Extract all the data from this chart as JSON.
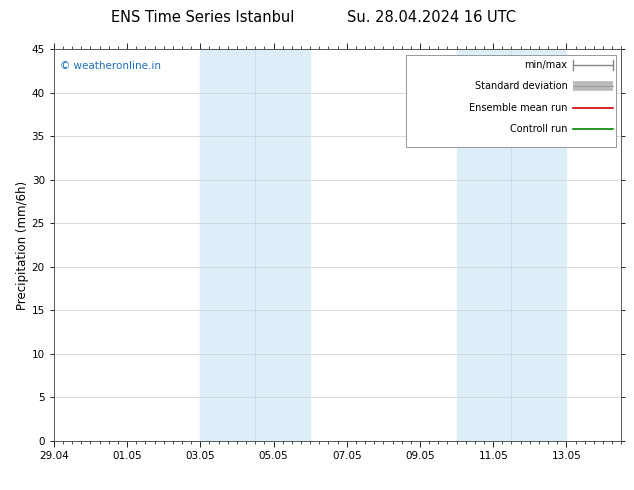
{
  "title_left": "ENS Time Series Istanbul",
  "title_right": "Su. 28.04.2024 16 UTC",
  "ylabel": "Precipitation (mm/6h)",
  "ylim": [
    0,
    45
  ],
  "yticks": [
    0,
    5,
    10,
    15,
    20,
    25,
    30,
    35,
    40,
    45
  ],
  "xlim_days": [
    0,
    15.5
  ],
  "xtick_labels": [
    "29.04",
    "01.05",
    "03.05",
    "05.05",
    "07.05",
    "09.05",
    "11.05",
    "13.05"
  ],
  "xtick_positions": [
    0,
    2,
    4,
    6,
    8,
    10,
    12,
    14
  ],
  "shaded_regions": [
    [
      4.0,
      5.5
    ],
    [
      5.5,
      7.0
    ],
    [
      11.0,
      12.5
    ],
    [
      12.5,
      14.0
    ]
  ],
  "shade_color": "#ddeef8",
  "watermark_text": "© weatheronline.in",
  "watermark_color": "#1a6fc4",
  "legend_items": [
    {
      "label": "min/max",
      "color": "#888888",
      "lw": 1.0
    },
    {
      "label": "Standard deviation",
      "color": "#bbbbbb",
      "lw": 7
    },
    {
      "label": "Ensemble mean run",
      "color": "#cc0000",
      "lw": 1.2
    },
    {
      "label": "Controll run",
      "color": "#008800",
      "lw": 1.2
    }
  ],
  "background_color": "#ffffff",
  "border_color": "#555555",
  "title_fontsize": 10.5,
  "tick_fontsize": 7.5,
  "ylabel_fontsize": 8.5,
  "legend_fontsize": 7.0
}
